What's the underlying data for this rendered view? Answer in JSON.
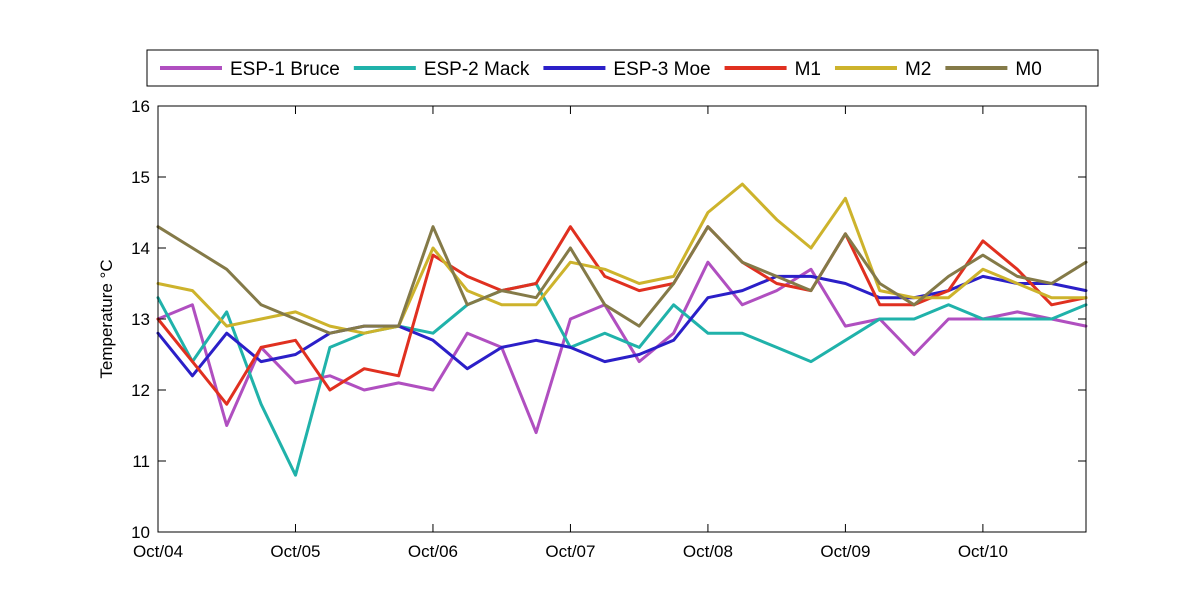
{
  "chart_data": {
    "type": "line",
    "title": "",
    "xlabel": "",
    "ylabel": "Temperature °C",
    "ylim": [
      10,
      16
    ],
    "yticks": [
      10,
      11,
      12,
      13,
      14,
      15,
      16
    ],
    "xlim": [
      0,
      6.75
    ],
    "xtick_labels": [
      "Oct/04",
      "Oct/05",
      "Oct/06",
      "Oct/07",
      "Oct/08",
      "Oct/09",
      "Oct/10"
    ],
    "grid": false,
    "legend_position": "top, horizontal, above plot",
    "x": [
      0.0,
      0.25,
      0.5,
      0.75,
      1.0,
      1.25,
      1.5,
      1.75,
      2.0,
      2.25,
      2.5,
      2.75,
      3.0,
      3.25,
      3.5,
      3.75,
      4.0,
      4.25,
      4.5,
      4.75,
      5.0,
      5.25,
      5.5,
      5.75,
      6.0,
      6.25,
      6.5,
      6.75
    ],
    "series": [
      {
        "name": "ESP-1 Bruce",
        "color": "#b04fc0",
        "values": [
          13.0,
          13.2,
          11.5,
          12.6,
          12.1,
          12.2,
          12.0,
          12.1,
          12.0,
          12.8,
          12.6,
          11.4,
          13.0,
          13.2,
          12.4,
          12.8,
          13.8,
          13.2,
          13.4,
          13.7,
          12.9,
          13.0,
          12.5,
          13.0,
          13.0,
          13.1,
          13.0,
          12.9
        ]
      },
      {
        "name": "ESP-2 Mack",
        "color": "#20b2aa",
        "values": [
          13.3,
          12.4,
          13.1,
          11.8,
          10.8,
          12.6,
          12.8,
          12.9,
          12.8,
          13.2,
          13.4,
          13.5,
          12.6,
          12.8,
          12.6,
          13.2,
          12.8,
          12.8,
          12.6,
          12.4,
          12.7,
          13.0,
          13.0,
          13.2,
          13.0,
          13.0,
          13.0,
          13.2
        ]
      },
      {
        "name": "ESP-3 Moe",
        "color": "#2b1fc8",
        "values": [
          12.8,
          12.2,
          12.8,
          12.4,
          12.5,
          12.8,
          12.9,
          12.9,
          12.7,
          12.3,
          12.6,
          12.7,
          12.6,
          12.4,
          12.5,
          12.7,
          13.3,
          13.4,
          13.6,
          13.6,
          13.5,
          13.3,
          13.3,
          13.4,
          13.6,
          13.5,
          13.5,
          13.4
        ]
      },
      {
        "name": "M1",
        "color": "#e03020",
        "values": [
          13.0,
          12.4,
          11.8,
          12.6,
          12.7,
          12.0,
          12.3,
          12.2,
          13.9,
          13.6,
          13.4,
          13.5,
          14.3,
          13.6,
          13.4,
          13.5,
          14.3,
          13.8,
          13.5,
          13.4,
          14.2,
          13.2,
          13.2,
          13.4,
          14.1,
          13.7,
          13.2,
          13.3
        ]
      },
      {
        "name": "M2",
        "color": "#cdb32c",
        "values": [
          13.5,
          13.4,
          12.9,
          13.0,
          13.1,
          12.9,
          12.8,
          12.9,
          14.0,
          13.4,
          13.2,
          13.2,
          13.8,
          13.7,
          13.5,
          13.6,
          14.5,
          14.9,
          14.4,
          14.0,
          14.7,
          13.4,
          13.3,
          13.3,
          13.7,
          13.5,
          13.3,
          13.3
        ]
      },
      {
        "name": "M0",
        "color": "#847a48",
        "values": [
          14.3,
          14.0,
          13.7,
          13.2,
          13.0,
          12.8,
          12.9,
          12.9,
          14.3,
          13.2,
          13.4,
          13.3,
          14.0,
          13.2,
          12.9,
          13.5,
          14.3,
          13.8,
          13.6,
          13.4,
          14.2,
          13.5,
          13.2,
          13.6,
          13.9,
          13.6,
          13.5,
          13.8
        ]
      }
    ]
  }
}
